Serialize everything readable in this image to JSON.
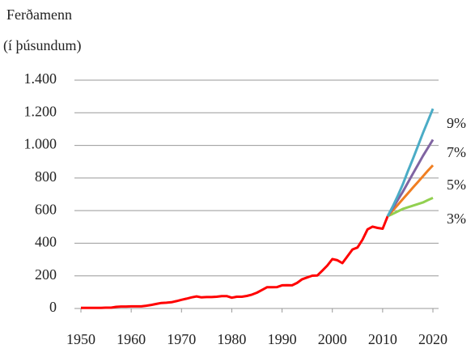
{
  "chart_data": {
    "type": "line",
    "title": "Ferðamenn",
    "subtitle": "(í þúsundum)",
    "series": [
      {
        "name": "",
        "color": "#ff0000",
        "x": [
          1950,
          1951,
          1952,
          1953,
          1954,
          1955,
          1956,
          1957,
          1958,
          1959,
          1960,
          1961,
          1962,
          1963,
          1964,
          1965,
          1966,
          1967,
          1968,
          1969,
          1970,
          1971,
          1972,
          1973,
          1974,
          1975,
          1976,
          1977,
          1978,
          1979,
          1980,
          1981,
          1982,
          1983,
          1984,
          1985,
          1986,
          1987,
          1988,
          1989,
          1990,
          1991,
          1992,
          1993,
          1994,
          1995,
          1996,
          1997,
          1998,
          1999,
          2000,
          2001,
          2002,
          2003,
          2004,
          2005,
          2006,
          2007,
          2008,
          2009,
          2010,
          2011
        ],
        "values": [
          4,
          4,
          4,
          4,
          4,
          5,
          5,
          10,
          12,
          12,
          13,
          13,
          13,
          17,
          22,
          28,
          34,
          35,
          38,
          45,
          53,
          60,
          68,
          74,
          68,
          70,
          70,
          72,
          76,
          76,
          66,
          72,
          72,
          77,
          85,
          97,
          113,
          130,
          130,
          131,
          142,
          143,
          142,
          157,
          179,
          190,
          201,
          202,
          232,
          263,
          303,
          296,
          278,
          320,
          362,
          374,
          422,
          485,
          502,
          494,
          489,
          566
        ]
      },
      {
        "name": "3%",
        "color": "#92d050",
        "x": [
          2011,
          2012,
          2013,
          2014,
          2015,
          2016,
          2017,
          2018,
          2019,
          2020
        ],
        "values": [
          566,
          580,
          595,
          610,
          620,
          630,
          640,
          650,
          665,
          678
        ]
      },
      {
        "name": "5%",
        "color": "#f07f22",
        "x": [
          2011,
          2012,
          2013,
          2014,
          2015,
          2016,
          2017,
          2018,
          2019,
          2020
        ],
        "values": [
          566,
          600,
          635,
          670,
          705,
          740,
          775,
          810,
          845,
          878
        ]
      },
      {
        "name": "7%",
        "color": "#8064a2",
        "x": [
          2011,
          2012,
          2013,
          2014,
          2015,
          2016,
          2017,
          2018,
          2019,
          2020
        ],
        "values": [
          566,
          615,
          665,
          715,
          770,
          825,
          880,
          935,
          985,
          1035
        ]
      },
      {
        "name": "9%",
        "color": "#4bacc6",
        "x": [
          2011,
          2012,
          2013,
          2014,
          2015,
          2016,
          2017,
          2018,
          2019,
          2020
        ],
        "values": [
          566,
          625,
          690,
          760,
          840,
          915,
          995,
          1075,
          1150,
          1225
        ]
      }
    ],
    "xlim": [
      1950,
      2020
    ],
    "xticks": [
      1950,
      1960,
      1970,
      1980,
      1990,
      2000,
      2010,
      2020
    ],
    "ylim": [
      0,
      1400
    ],
    "yticks": [
      0,
      200,
      400,
      600,
      800,
      {
        "value": 1000,
        "label": "1.000"
      },
      {
        "value": 1200,
        "label": "1.200"
      },
      {
        "value": 1400,
        "label": "1.400"
      }
    ],
    "grid": true
  }
}
